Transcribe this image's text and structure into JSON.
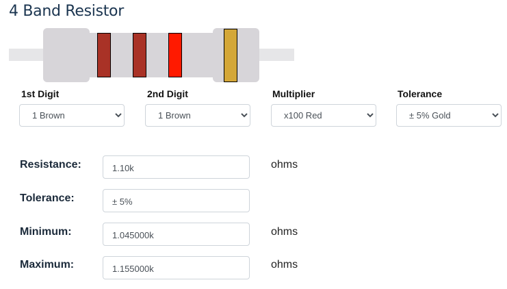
{
  "title": "4 Band Resistor",
  "resistor": {
    "band_colors": [
      "#a93226",
      "#a93226",
      "#ff1a00",
      "#d4a737"
    ],
    "body_color": "#d7d5d9"
  },
  "selectors": [
    {
      "label": "1st Digit",
      "value": "1 Brown"
    },
    {
      "label": "2nd Digit",
      "value": "1 Brown"
    },
    {
      "label": "Multiplier",
      "value": "x100 Red"
    },
    {
      "label": "Tolerance",
      "value": "± 5% Gold"
    }
  ],
  "results": [
    {
      "label": "Resistance:",
      "value": "1.10k",
      "unit": "ohms"
    },
    {
      "label": "Tolerance:",
      "value": "± 5%",
      "unit": ""
    },
    {
      "label": "Minimum:",
      "value": "1.045000k",
      "unit": "ohms"
    },
    {
      "label": "Maximum:",
      "value": "1.155000k",
      "unit": "ohms"
    }
  ]
}
